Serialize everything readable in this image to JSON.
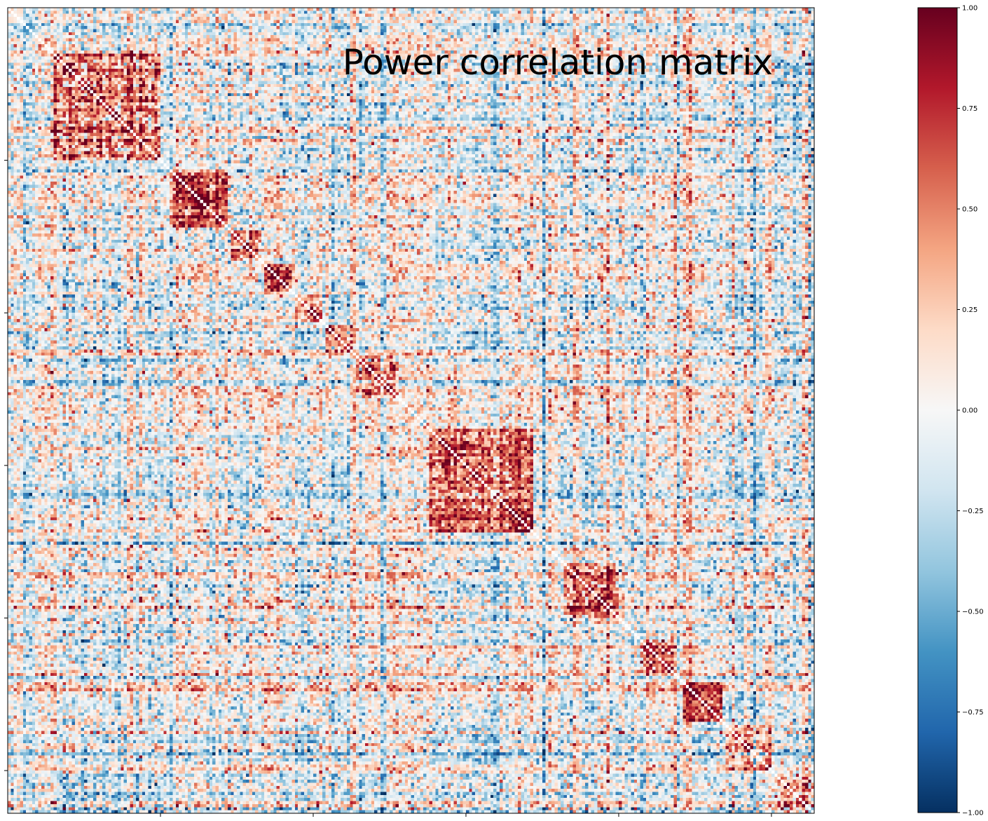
{
  "chart_data": {
    "type": "heatmap",
    "title": "Power correlation matrix",
    "matrix_size": 264,
    "value_range": [
      -1.0,
      1.0
    ],
    "colormap": "RdBu_r",
    "colormap_stops": [
      "#053061",
      "#2166ac",
      "#4393c3",
      "#92c5de",
      "#d1e5f0",
      "#f7f7f7",
      "#fddbc7",
      "#f4a582",
      "#d6604d",
      "#b2182b",
      "#67001f"
    ],
    "diagonal": "masked",
    "x_ticks": [
      50,
      100,
      150,
      200,
      250
    ],
    "y_ticks": [
      50,
      100,
      150,
      200,
      250
    ],
    "modules": [
      {
        "start": 15,
        "end": 50,
        "strength": 0.55
      },
      {
        "start": 53,
        "end": 72,
        "strength": 0.6
      },
      {
        "start": 73,
        "end": 83,
        "strength": 0.45
      },
      {
        "start": 84,
        "end": 93,
        "strength": 0.55
      },
      {
        "start": 94,
        "end": 103,
        "strength": 0.45
      },
      {
        "start": 104,
        "end": 113,
        "strength": 0.45
      },
      {
        "start": 114,
        "end": 127,
        "strength": 0.35
      },
      {
        "start": 138,
        "end": 172,
        "strength": 0.6
      },
      {
        "start": 182,
        "end": 200,
        "strength": 0.45
      },
      {
        "start": 207,
        "end": 218,
        "strength": 0.45
      },
      {
        "start": 221,
        "end": 234,
        "strength": 0.6
      },
      {
        "start": 235,
        "end": 250,
        "strength": 0.35
      },
      {
        "start": 251,
        "end": 264,
        "strength": 0.4
      }
    ],
    "colorbar": {
      "ticks": [
        -1.0,
        -0.75,
        -0.5,
        -0.25,
        0.0,
        0.25,
        0.5,
        0.75,
        1.0
      ],
      "tick_labels": [
        "−1.00",
        "−0.75",
        "−0.50",
        "−0.25",
        "0.00",
        "0.25",
        "0.50",
        "0.75",
        "1.00"
      ]
    }
  }
}
